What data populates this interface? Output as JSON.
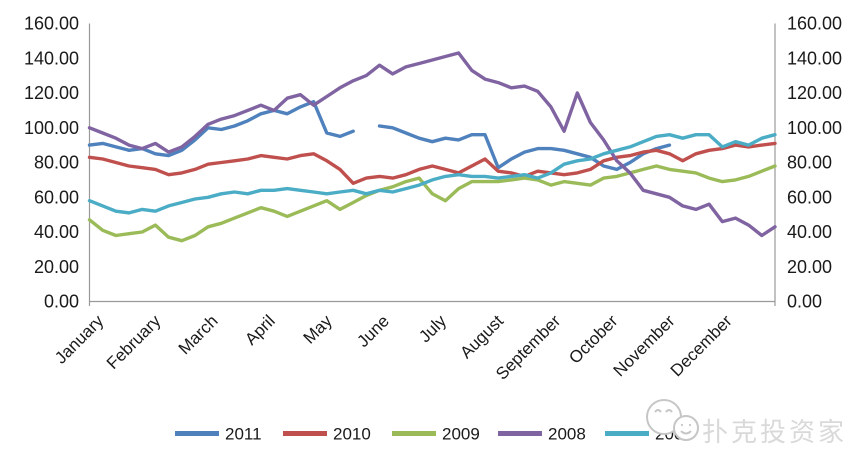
{
  "chart_data": {
    "type": "line",
    "title": "",
    "months": [
      "January",
      "February",
      "March",
      "April",
      "May",
      "June",
      "July",
      "August",
      "September",
      "October",
      "November",
      "December"
    ],
    "y_ticks": [
      "0.00",
      "20.00",
      "40.00",
      "60.00",
      "80.00",
      "100.00",
      "120.00",
      "140.00",
      "160.00"
    ],
    "y_min": 0,
    "y_max": 160,
    "y_step": 20,
    "dual_y_axis": true,
    "grid": false,
    "legend_position": "bottom",
    "axis_color": "#999999",
    "text_color": "#1a1a1a",
    "series": [
      {
        "name": "2011",
        "color": "#4F81BD",
        "values": [
          90,
          91,
          89,
          87,
          88,
          85,
          84,
          87,
          93,
          100,
          99,
          101,
          104,
          108,
          110,
          108,
          112,
          115,
          97,
          95,
          98,
          null,
          101,
          100,
          97,
          94,
          92,
          94,
          93,
          96,
          96,
          77,
          82,
          86,
          88,
          88,
          87,
          85,
          83,
          78,
          76,
          80,
          85,
          88,
          90,
          null,
          null,
          null,
          null,
          null,
          null,
          null,
          null
        ]
      },
      {
        "name": "2010",
        "color": "#C0504D",
        "values": [
          83,
          82,
          80,
          78,
          77,
          76,
          73,
          74,
          76,
          79,
          80,
          81,
          82,
          84,
          83,
          82,
          84,
          85,
          81,
          76,
          68,
          71,
          72,
          71,
          73,
          76,
          78,
          76,
          74,
          78,
          82,
          75,
          74,
          72,
          75,
          74,
          73,
          74,
          76,
          81,
          83,
          84,
          86,
          87,
          85,
          81,
          85,
          87,
          88,
          90,
          89,
          90,
          91
        ]
      },
      {
        "name": "2009",
        "color": "#9BBB59",
        "values": [
          47,
          41,
          38,
          39,
          40,
          44,
          37,
          35,
          38,
          43,
          45,
          48,
          51,
          54,
          52,
          49,
          52,
          55,
          58,
          53,
          57,
          61,
          64,
          66,
          69,
          71,
          62,
          58,
          65,
          69,
          69,
          69,
          70,
          71,
          70,
          67,
          69,
          68,
          67,
          71,
          72,
          74,
          76,
          78,
          76,
          75,
          74,
          71,
          69,
          70,
          72,
          75,
          78
        ]
      },
      {
        "name": "2008",
        "color": "#8064A2",
        "values": [
          100,
          97,
          94,
          90,
          88,
          91,
          86,
          89,
          95,
          102,
          105,
          107,
          110,
          113,
          110,
          117,
          119,
          113,
          118,
          123,
          127,
          130,
          136,
          131,
          135,
          137,
          139,
          141,
          143,
          133,
          128,
          126,
          123,
          124,
          121,
          112,
          98,
          120,
          103,
          93,
          81,
          74,
          64,
          62,
          60,
          55,
          53,
          56,
          46,
          48,
          44,
          38,
          43
        ]
      },
      {
        "name": "2007",
        "color": "#4BACC6",
        "values": [
          58,
          55,
          52,
          51,
          53,
          52,
          55,
          57,
          59,
          60,
          62,
          63,
          62,
          64,
          64,
          65,
          64,
          63,
          62,
          63,
          64,
          62,
          64,
          63,
          65,
          67,
          70,
          72,
          73,
          72,
          72,
          71,
          72,
          73,
          71,
          74,
          79,
          81,
          82,
          85,
          87,
          89,
          92,
          95,
          96,
          94,
          96,
          96,
          89,
          92,
          90,
          94,
          96
        ]
      }
    ]
  },
  "watermark": {
    "text": "扑克投资家",
    "icon": "two-smiley-faces-logo",
    "color": "#d9d9d9"
  }
}
